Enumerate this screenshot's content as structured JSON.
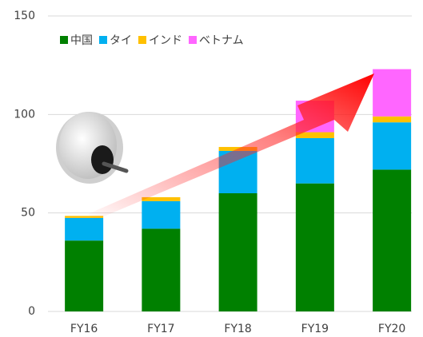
{
  "chart_data": {
    "type": "stacked_bar",
    "categories": [
      "FY16",
      "FY17",
      "FY18",
      "FY19",
      "FY20"
    ],
    "series": [
      {
        "name": "中国",
        "color": "#008000",
        "values": [
          36,
          42,
          60,
          65,
          72
        ]
      },
      {
        "name": "タイ",
        "color": "#00b0f0",
        "values": [
          11.5,
          14,
          21.5,
          23,
          24
        ]
      },
      {
        "name": "インド",
        "color": "#ffc000",
        "values": [
          1,
          2,
          2,
          3,
          3
        ]
      },
      {
        "name": "ベトナム",
        "color": "#ff66ff",
        "values": [
          0,
          0,
          0,
          16,
          24
        ]
      }
    ],
    "ylim": [
      0,
      150
    ],
    "yticks": [
      0,
      50,
      100,
      150
    ],
    "grid": true,
    "legend": "top-left"
  }
}
